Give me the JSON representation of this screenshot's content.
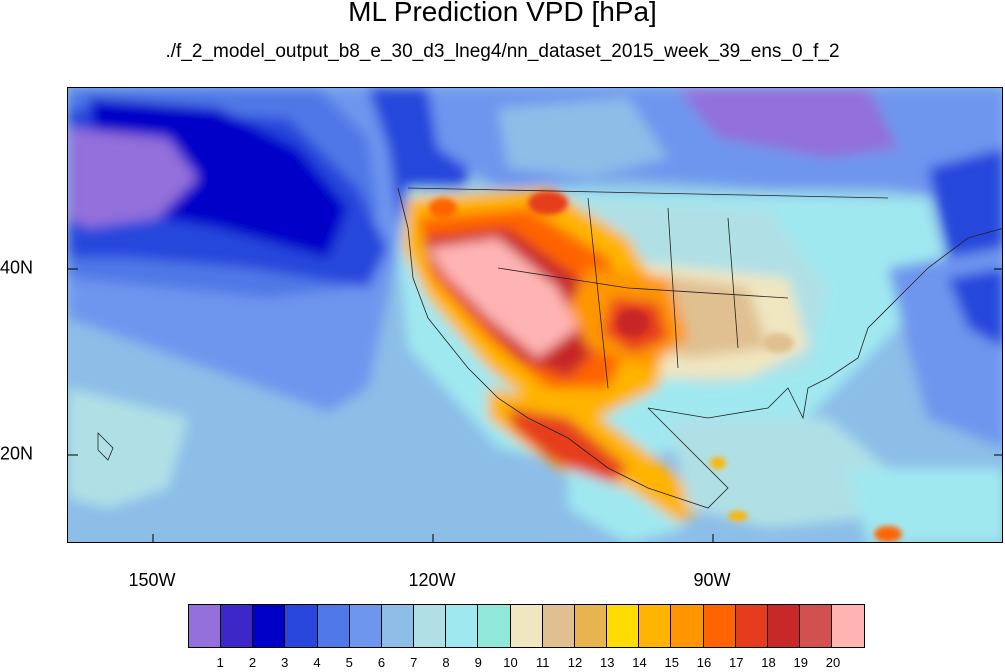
{
  "title": "ML Prediction VPD [hPa]",
  "subtitle": "./f_2_model_output_b8_e_30_d3_lneg4/nn_dataset_2015_week_39_ens_0_f_2",
  "map": {
    "lon_labels": [
      "150W",
      "120W",
      "90W"
    ],
    "lat_labels": [
      "40N",
      "20N"
    ],
    "lon_range": [
      -159,
      -59
    ],
    "lat_range": [
      11,
      60
    ]
  },
  "colorbar": {
    "colors": [
      "#9370db",
      "#3c28c8",
      "#0000c8",
      "#2846dc",
      "#5078e6",
      "#6e96ee",
      "#8cbee8",
      "#b0e0e6",
      "#a0e8f0",
      "#90e8d8",
      "#f0e6c0",
      "#e0c090",
      "#e8b450",
      "#ffdc00",
      "#ffb400",
      "#ff9600",
      "#ff6400",
      "#e63c1e",
      "#c82828",
      "#d25050",
      "#ffb4b4"
    ],
    "labels": [
      "1",
      "2",
      "3",
      "4",
      "5",
      "6",
      "7",
      "8",
      "9",
      "10",
      "11",
      "12",
      "13",
      "14",
      "15",
      "16",
      "17",
      "18",
      "19",
      "20"
    ]
  }
}
